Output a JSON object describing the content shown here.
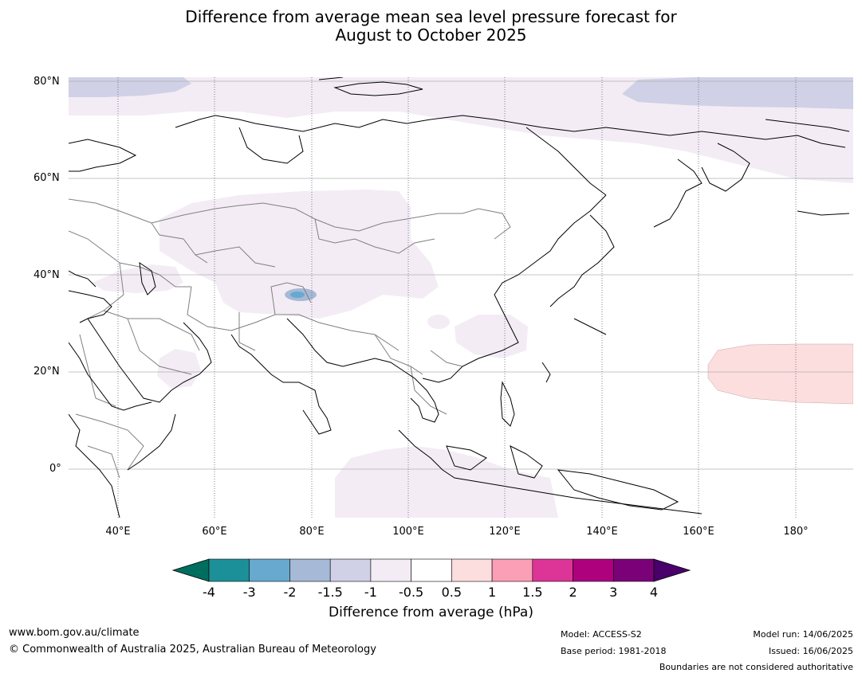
{
  "title_line1": "Difference from average mean sea level pressure forecast for",
  "title_line2": "August to October 2025",
  "lat_labels": [
    "80°N",
    "60°N",
    "40°N",
    "20°N",
    "0°"
  ],
  "lon_labels": [
    "40°E",
    "60°E",
    "80°E",
    "100°E",
    "120°E",
    "140°E",
    "160°E",
    "180°"
  ],
  "colorbar": {
    "ticks": [
      "-4",
      "-3",
      "-2",
      "-1.5",
      "-1",
      "-0.5",
      "0.5",
      "1",
      "1.5",
      "2",
      "3",
      "4"
    ],
    "colors": [
      "#006e5e",
      "#1c9099",
      "#67a9cf",
      "#a6b9d6",
      "#d0d1e6",
      "#f3ecf5",
      "#ffffff",
      "#fddede",
      "#fa9fb5",
      "#dd3497",
      "#ae017e",
      "#7a0177",
      "#49006a"
    ],
    "label": "Difference from average (hPa)"
  },
  "footer": {
    "website": "www.bom.gov.au/climate",
    "copyright": "© Commonwealth of Australia 2025, Australian Bureau of Meteorology",
    "model": "Model: ACCESS-S2",
    "base_period": "Base period: 1981-2018",
    "model_run": "Model run: 14/06/2025",
    "issued": "Issued: 16/06/2025",
    "disclaimer": "Boundaries are not considered authoritative"
  }
}
